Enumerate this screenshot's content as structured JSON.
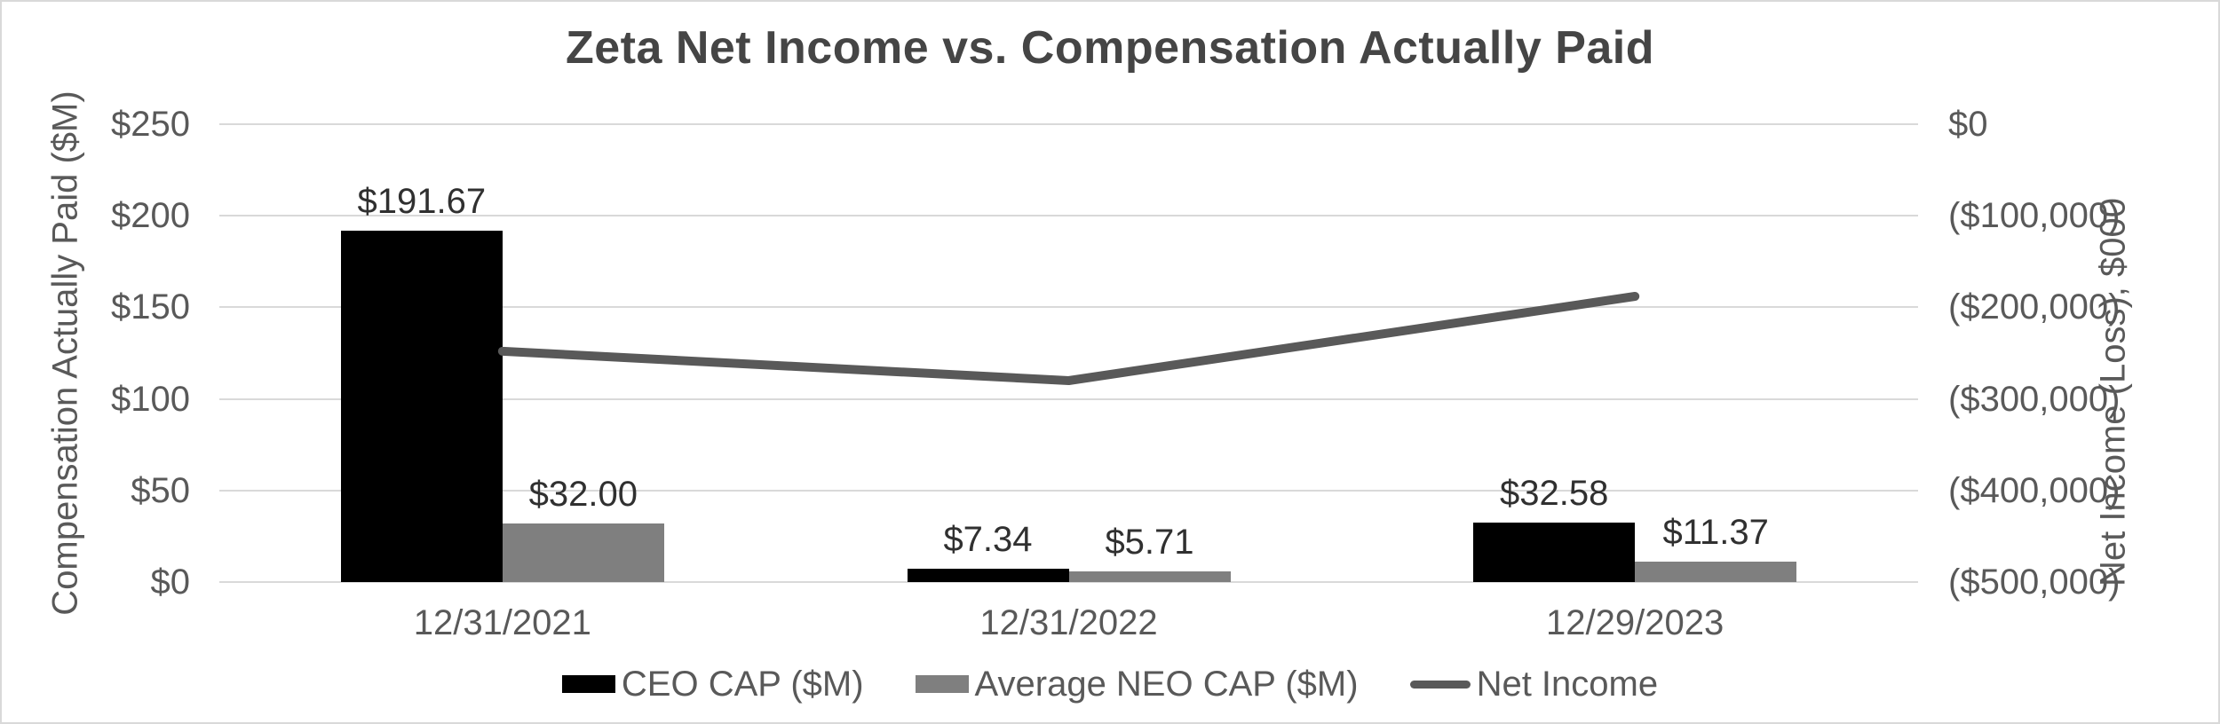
{
  "chart_data": {
    "type": "combo-bar-line",
    "title": "Zeta Net Income vs. Compensation Actually Paid",
    "categories": [
      "12/31/2021",
      "12/31/2022",
      "12/29/2023"
    ],
    "series": [
      {
        "name": "CEO CAP ($M)",
        "type": "bar",
        "axis": "left",
        "color": "#000000",
        "values": [
          191.67,
          7.34,
          32.58
        ],
        "data_labels": [
          "$191.67",
          "$7.34",
          "$32.58"
        ]
      },
      {
        "name": "Average NEO CAP ($M)",
        "type": "bar",
        "axis": "left",
        "color": "#7f7f7f",
        "values": [
          32.0,
          5.71,
          11.37
        ],
        "data_labels": [
          "$32.00",
          "$5.71",
          "$11.37"
        ]
      },
      {
        "name": "Net Income",
        "type": "line",
        "axis": "right",
        "color": "#595959",
        "values": [
          -248000,
          -280000,
          -188000
        ]
      }
    ],
    "left_axis": {
      "title": "Compensation Actually Paid ($M)",
      "tick_labels": [
        "$250",
        "$200",
        "$150",
        "$100",
        "$50",
        "$0"
      ],
      "tick_values": [
        250,
        200,
        150,
        100,
        50,
        0
      ],
      "min": 0,
      "max": 250
    },
    "right_axis": {
      "title": "Net Income (Loss), $000",
      "tick_labels": [
        "$0",
        "($100,000)",
        "($200,000)",
        "($300,000)",
        "($400,000)",
        "($500,000)"
      ],
      "tick_values": [
        0,
        -100000,
        -200000,
        -300000,
        -400000,
        -500000
      ],
      "min": -500000,
      "max": 0
    },
    "legend": {
      "position": "bottom",
      "items": [
        {
          "label": "CEO CAP ($M)",
          "swatch": "rect",
          "color": "#000000"
        },
        {
          "label": "Average NEO CAP ($M)",
          "swatch": "rect",
          "color": "#7f7f7f"
        },
        {
          "label": "Net Income",
          "swatch": "line",
          "color": "#595959"
        }
      ]
    },
    "grid": true,
    "gridline_color": "#d9d9d9",
    "background_color": "#ffffff",
    "border_color": "#d9d9d9"
  }
}
